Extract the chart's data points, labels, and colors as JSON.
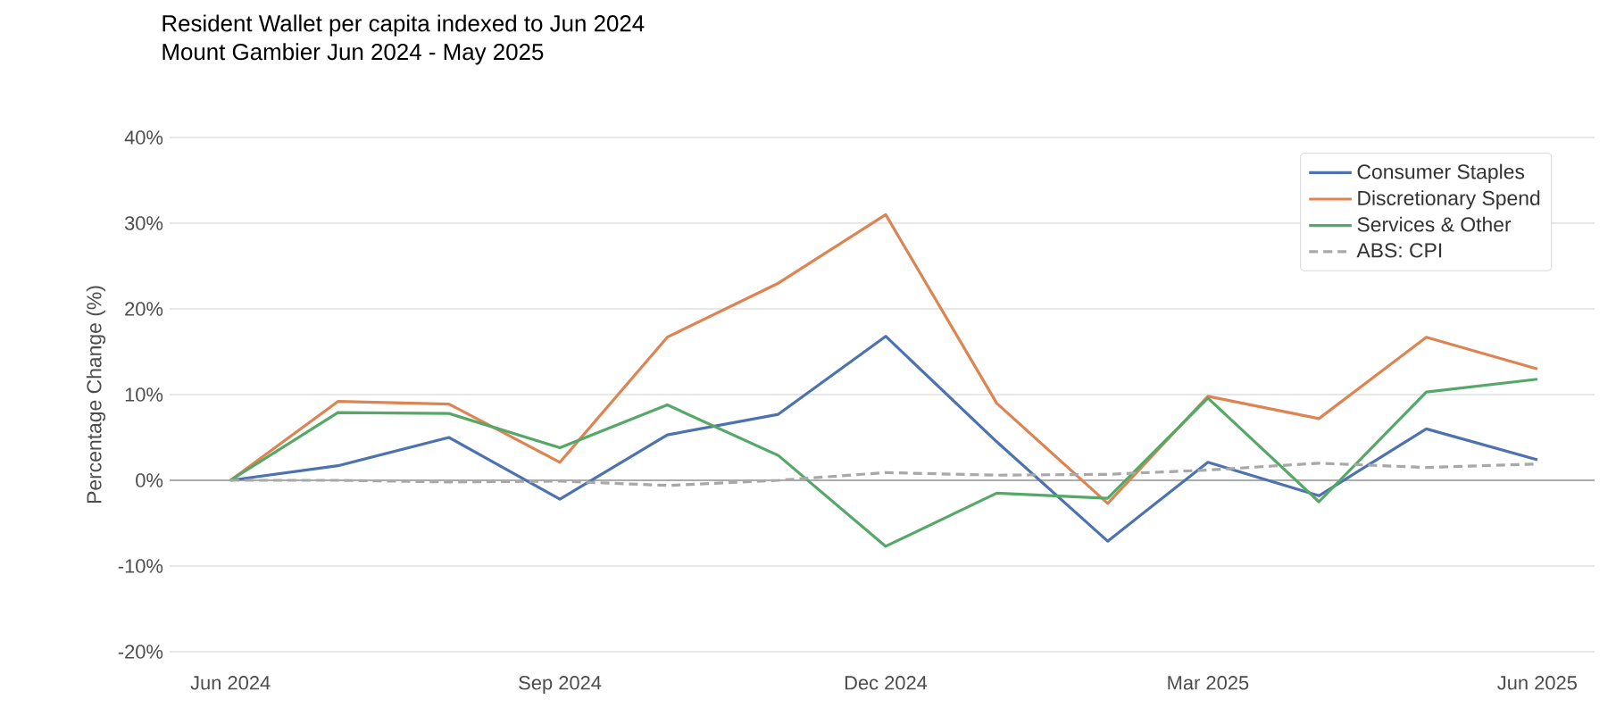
{
  "chart_data": {
    "type": "line",
    "title": "Resident Wallet per capita indexed to Jun 2024",
    "subtitle": "Mount Gambier Jun 2024 - May 2025",
    "ylabel": "Percentage Change (%)",
    "x": [
      "2024-06",
      "2024-07",
      "2024-08",
      "2024-09",
      "2024-10",
      "2024-11",
      "2024-12",
      "2025-01",
      "2025-02",
      "2025-03",
      "2025-04",
      "2025-05",
      "2025-06"
    ],
    "series": [
      {
        "name": "Consumer Staples",
        "color": "#4c72b0",
        "values": [
          0,
          1.7,
          5,
          -2.2,
          5.3,
          7.7,
          16.8,
          4.5,
          -7.1,
          2.1,
          -1.8,
          6,
          2.4
        ]
      },
      {
        "name": "Discretionary Spend",
        "color": "#dd8452",
        "values": [
          0,
          9.2,
          8.9,
          2.1,
          16.7,
          23,
          31,
          9,
          -2.7,
          9.8,
          7.2,
          16.7,
          13
        ]
      },
      {
        "name": "Services & Other",
        "color": "#55a868",
        "values": [
          0,
          7.9,
          7.8,
          3.8,
          8.8,
          2.9,
          -7.7,
          -1.5,
          -2.1,
          9.6,
          -2.5,
          10.3,
          11.8
        ]
      },
      {
        "name": "ABS: CPI",
        "color": "#a8a8a8",
        "line_style": "dashed",
        "values": [
          0,
          0,
          -0.2,
          -0.1,
          -0.6,
          0,
          0.9,
          0.6,
          0.7,
          1.2,
          2,
          1.5,
          1.9
        ]
      }
    ],
    "xlim": [
      "2024-05-15",
      "2025-06-17"
    ],
    "xticks": [
      {
        "value": "2024-06",
        "label": "Jun 2024"
      },
      {
        "value": "2024-09",
        "label": "Sep 2024"
      },
      {
        "value": "2024-12",
        "label": "Dec 2024"
      },
      {
        "value": "2025-03",
        "label": "Mar 2025"
      },
      {
        "value": "2025-06",
        "label": "Jun 2025"
      }
    ],
    "ylim": [
      -20,
      40
    ],
    "yticks": [
      {
        "value": -20,
        "label": "-20%"
      },
      {
        "value": -10,
        "label": "-10%"
      },
      {
        "value": 0,
        "label": "0%"
      },
      {
        "value": 10,
        "label": "10%"
      },
      {
        "value": 20,
        "label": "20%"
      },
      {
        "value": 30,
        "label": "30%"
      },
      {
        "value": 40,
        "label": "40%"
      }
    ],
    "ref_lines": [
      {
        "axis": "y",
        "value": 0,
        "color": "#999999"
      }
    ],
    "grid": "y",
    "legend": "top right"
  }
}
